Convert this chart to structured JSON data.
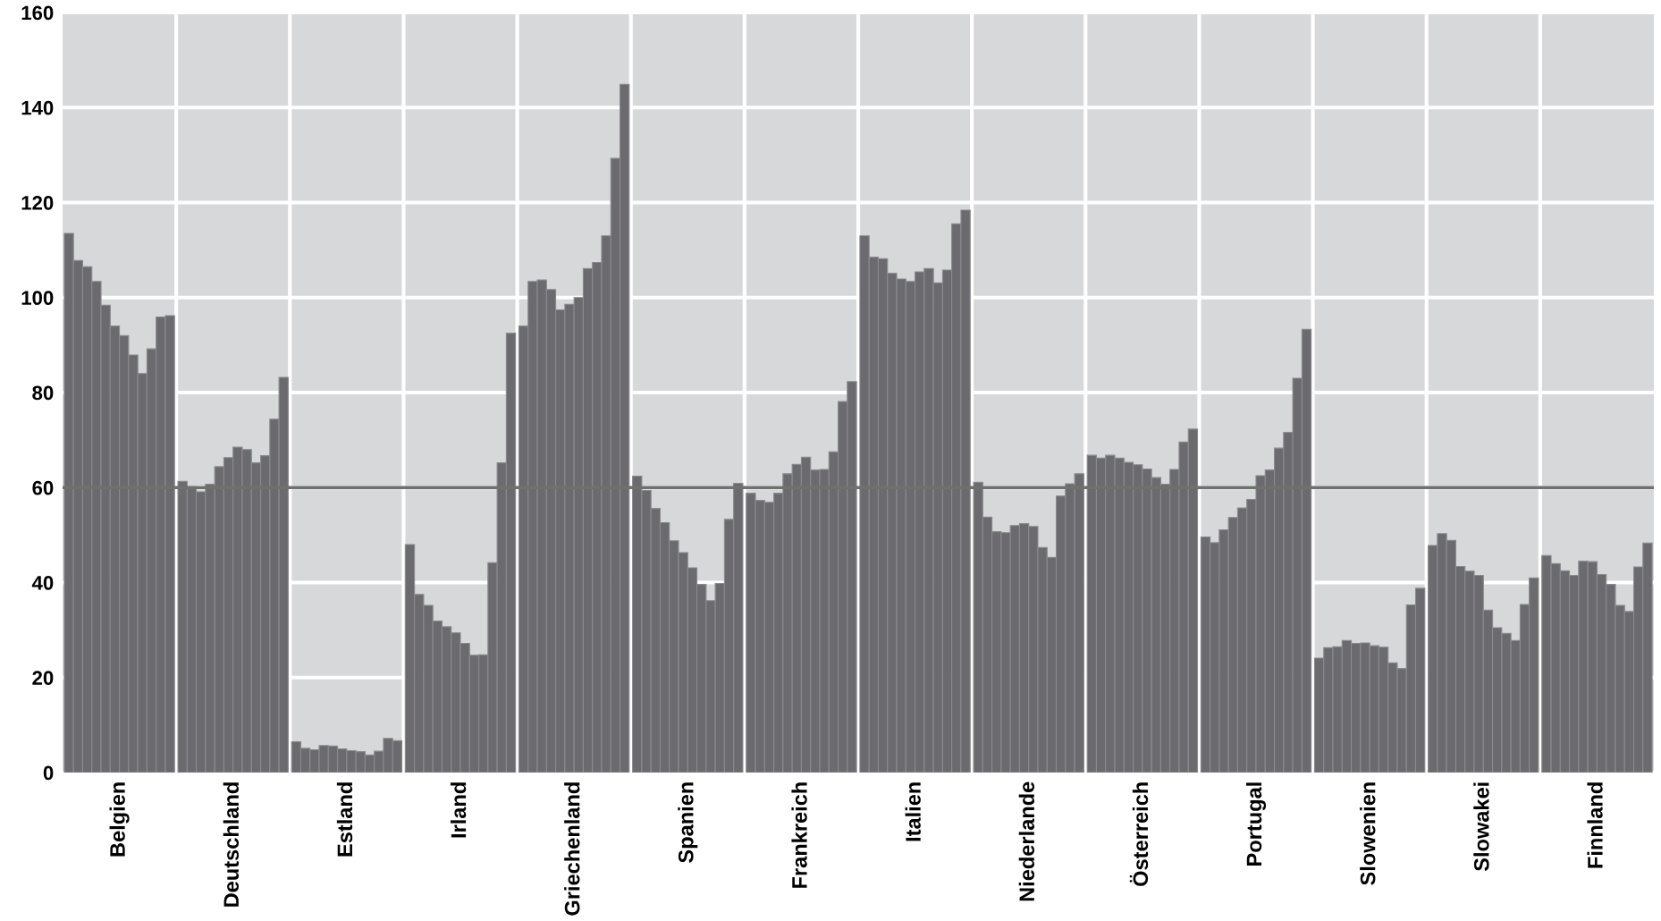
{
  "chart_data": {
    "type": "bar",
    "categories": [
      "Belgien",
      "Deutschland",
      "Estland",
      "Irland",
      "Griechenland",
      "Spanien",
      "Frankreich",
      "Italien",
      "Niederlande",
      "Österreich",
      "Portugal",
      "Slowenien",
      "Slowakei",
      "Finnland"
    ],
    "series": [
      {
        "color": "#6b6b6f",
        "values": [
          113.5,
          61.3,
          6.5,
          48.0,
          94.0,
          62.4,
          58.8,
          113.0,
          61.1,
          66.8,
          49.6,
          24.1,
          47.8,
          45.7
        ]
      },
      {
        "color": "#6b6b6f",
        "values": [
          107.8,
          60.2,
          5.1,
          37.5,
          103.4,
          59.4,
          57.3,
          108.5,
          53.8,
          66.2,
          48.4,
          26.3,
          50.3,
          44.0
        ]
      },
      {
        "color": "#6b6b6f",
        "values": [
          106.5,
          59.1,
          4.8,
          35.2,
          103.7,
          55.6,
          56.9,
          108.2,
          50.7,
          66.8,
          51.1,
          26.5,
          48.9,
          42.5
        ]
      },
      {
        "color": "#6b6b6f",
        "values": [
          103.4,
          60.7,
          5.7,
          31.9,
          101.7,
          52.6,
          58.8,
          105.1,
          50.5,
          66.2,
          53.7,
          27.8,
          43.4,
          41.5
        ]
      },
      {
        "color": "#6b6b6f",
        "values": [
          98.4,
          64.4,
          5.6,
          30.7,
          97.4,
          48.8,
          62.9,
          103.9,
          52.0,
          65.3,
          55.7,
          27.2,
          42.4,
          44.5
        ]
      },
      {
        "color": "#6b6b6f",
        "values": [
          94.0,
          66.3,
          5.0,
          29.4,
          98.6,
          46.3,
          64.9,
          103.4,
          52.4,
          64.8,
          57.5,
          27.3,
          41.5,
          44.4
        ]
      },
      {
        "color": "#6b6b6f",
        "values": [
          92.0,
          68.5,
          4.6,
          27.2,
          100.0,
          43.1,
          66.4,
          105.4,
          51.8,
          63.9,
          62.5,
          26.7,
          34.2,
          41.7
        ]
      },
      {
        "color": "#6b6b6f",
        "values": [
          87.9,
          68.0,
          4.4,
          24.7,
          106.1,
          39.6,
          63.7,
          106.1,
          47.4,
          62.1,
          63.7,
          26.4,
          30.5,
          39.6
        ]
      },
      {
        "color": "#6b6b6f",
        "values": [
          84.0,
          65.2,
          3.7,
          24.8,
          107.4,
          36.2,
          63.8,
          103.1,
          45.3,
          60.7,
          68.3,
          23.1,
          29.3,
          35.2
        ]
      },
      {
        "color": "#6b6b6f",
        "values": [
          89.2,
          66.7,
          4.5,
          44.2,
          113.0,
          39.8,
          67.5,
          105.8,
          58.2,
          63.8,
          71.6,
          21.9,
          27.8,
          33.9
        ]
      },
      {
        "color": "#6b6b6f",
        "values": [
          95.9,
          74.4,
          7.2,
          65.2,
          129.3,
          53.3,
          78.1,
          115.5,
          60.8,
          69.6,
          83.0,
          35.3,
          35.4,
          43.3
        ]
      },
      {
        "color": "#6b6b6f",
        "values": [
          96.2,
          83.2,
          6.7,
          92.5,
          144.9,
          60.9,
          82.3,
          118.4,
          62.9,
          72.3,
          93.3,
          38.8,
          41.0,
          48.3
        ]
      }
    ],
    "ylim": [
      0,
      160
    ],
    "yticks": [
      0,
      20,
      40,
      60,
      80,
      100,
      120,
      140,
      160
    ],
    "ref_lines": [
      {
        "axis": "y",
        "value": 60,
        "color": "#707070"
      }
    ],
    "grid": true,
    "legend": false
  }
}
